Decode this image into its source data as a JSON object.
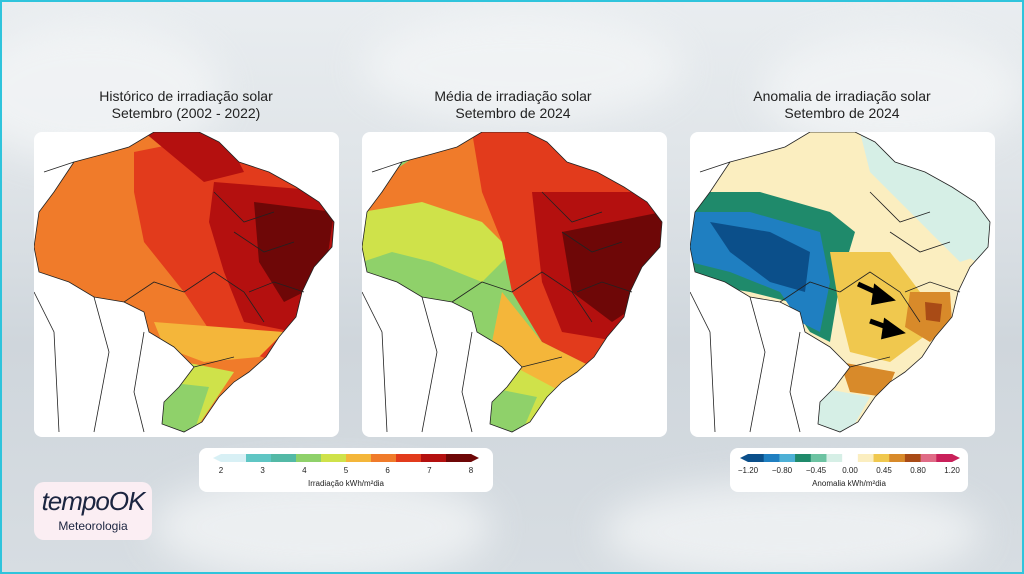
{
  "panels": [
    {
      "title_line1": "Histórico de irradiação solar",
      "title_line2": "Setembro (2002 - 2022)"
    },
    {
      "title_line1": "Média de irradiação solar",
      "title_line2": "Setembro de 2024"
    },
    {
      "title_line1": "Anomalia de irradiação solar",
      "title_line2": "Setembro de 2024"
    }
  ],
  "legend_irradiance": {
    "ticks": [
      "2",
      "3",
      "4",
      "5",
      "6",
      "7",
      "8"
    ],
    "label": "Irradiação kWh/m²dia",
    "colors": [
      "#d8f0f5",
      "#5fc6c4",
      "#53b9a6",
      "#8fd16a",
      "#cfe24a",
      "#f4b63a",
      "#f07b2a",
      "#e23b1c",
      "#b4100f",
      "#6e0707"
    ]
  },
  "legend_anomaly": {
    "ticks": [
      "−1.20",
      "−0.80",
      "−0.45",
      "0.00",
      "0.45",
      "0.80",
      "1.20"
    ],
    "label": "Anomalia kWh/m²dia",
    "colors": [
      "#0b4f8a",
      "#1f7fc1",
      "#4db0d6",
      "#1f8a6b",
      "#6cc3a2",
      "#d6efe6",
      "#ffffff",
      "#fbeec0",
      "#f0c84e",
      "#d88a2a",
      "#a94b16",
      "#e06b86",
      "#c9205a"
    ]
  },
  "logo": {
    "brand": "tempoOK",
    "sub": "Meteorologia"
  }
}
